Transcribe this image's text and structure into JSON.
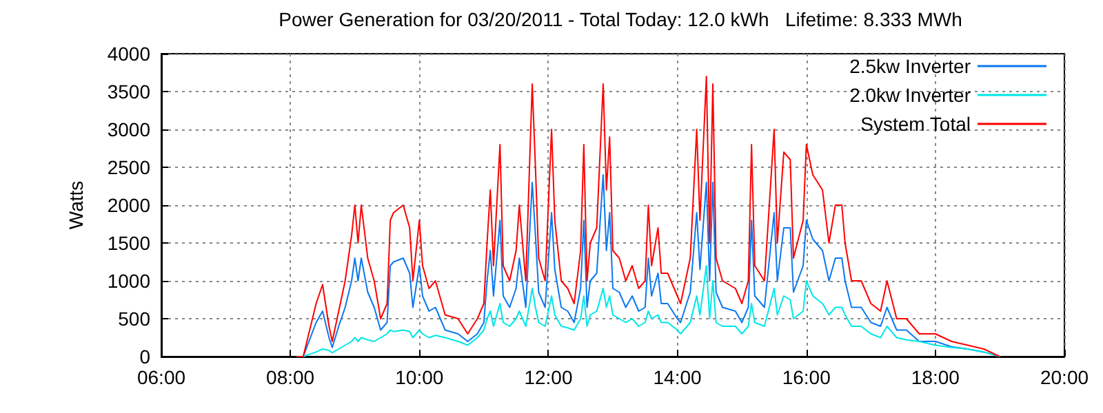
{
  "chart_data": {
    "type": "line",
    "title": "Power Generation for 03/20/2011 - Total Today: 12.0 kWh   Lifetime: 8.333 MWh",
    "ylabel": "Watts",
    "x": [
      8.1,
      8.2,
      8.4,
      8.5,
      8.6,
      8.65,
      8.75,
      8.85,
      8.95,
      9.0,
      9.05,
      9.1,
      9.2,
      9.3,
      9.4,
      9.5,
      9.55,
      9.6,
      9.75,
      9.85,
      9.9,
      10.0,
      10.05,
      10.15,
      10.25,
      10.4,
      10.6,
      10.75,
      10.9,
      11.0,
      11.05,
      11.1,
      11.15,
      11.25,
      11.3,
      11.4,
      11.5,
      11.55,
      11.65,
      11.75,
      11.8,
      11.85,
      11.95,
      12.05,
      12.1,
      12.2,
      12.3,
      12.4,
      12.5,
      12.55,
      12.6,
      12.65,
      12.75,
      12.85,
      12.9,
      12.95,
      13.0,
      13.1,
      13.2,
      13.3,
      13.4,
      13.5,
      13.55,
      13.6,
      13.7,
      13.75,
      13.85,
      14.0,
      14.05,
      14.2,
      14.3,
      14.35,
      14.45,
      14.5,
      14.55,
      14.6,
      14.7,
      14.9,
      15.0,
      15.1,
      15.15,
      15.2,
      15.35,
      15.5,
      15.55,
      15.65,
      15.75,
      15.8,
      15.95,
      16.0,
      16.1,
      16.25,
      16.35,
      16.45,
      16.55,
      16.6,
      16.7,
      16.75,
      16.85,
      17.0,
      17.15,
      17.25,
      17.4,
      17.55,
      17.75,
      18.0,
      18.25,
      18.5,
      18.75,
      19.0
    ],
    "series": [
      {
        "name": "2.5kw Inverter",
        "color": "#0a78f0",
        "values": [
          0,
          0,
          450,
          600,
          250,
          120,
          400,
          650,
          1000,
          1300,
          1000,
          1300,
          850,
          650,
          350,
          450,
          1200,
          1250,
          1300,
          1100,
          650,
          1200,
          800,
          600,
          650,
          350,
          300,
          200,
          300,
          450,
          1000,
          1400,
          800,
          1800,
          800,
          650,
          900,
          1300,
          650,
          2300,
          1600,
          850,
          650,
          1900,
          1150,
          650,
          600,
          450,
          900,
          1800,
          650,
          1000,
          1100,
          2400,
          1400,
          1900,
          900,
          850,
          650,
          800,
          600,
          650,
          1300,
          800,
          1100,
          700,
          700,
          500,
          450,
          850,
          1900,
          1150,
          2300,
          1000,
          2300,
          850,
          650,
          600,
          450,
          650,
          1800,
          800,
          650,
          1900,
          1000,
          1700,
          1700,
          850,
          1200,
          1800,
          1550,
          1400,
          1000,
          1300,
          1300,
          1000,
          650,
          650,
          650,
          450,
          400,
          650,
          350,
          350,
          200,
          200,
          130,
          100,
          60,
          0
        ]
      },
      {
        "name": "2.0kw Inverter",
        "color": "#00e6e6",
        "values": [
          0,
          0,
          60,
          100,
          80,
          50,
          100,
          150,
          200,
          250,
          200,
          250,
          220,
          200,
          250,
          300,
          350,
          330,
          350,
          330,
          250,
          350,
          300,
          250,
          280,
          250,
          200,
          150,
          250,
          350,
          500,
          600,
          400,
          700,
          450,
          400,
          500,
          600,
          400,
          900,
          650,
          450,
          400,
          800,
          550,
          400,
          380,
          350,
          500,
          800,
          400,
          550,
          600,
          900,
          650,
          800,
          550,
          500,
          450,
          500,
          400,
          450,
          600,
          500,
          550,
          450,
          450,
          350,
          300,
          450,
          800,
          550,
          1200,
          500,
          1000,
          450,
          400,
          400,
          300,
          400,
          700,
          450,
          400,
          900,
          550,
          800,
          750,
          500,
          600,
          1000,
          800,
          700,
          550,
          650,
          650,
          550,
          400,
          400,
          400,
          300,
          250,
          400,
          250,
          220,
          200,
          150,
          120,
          100,
          60,
          0
        ]
      },
      {
        "name": "System Total",
        "color": "#ff0000",
        "values": [
          0,
          0,
          700,
          950,
          400,
          200,
          600,
          1000,
          1600,
          2000,
          1500,
          2000,
          1300,
          1000,
          500,
          700,
          1800,
          1900,
          2000,
          1700,
          1000,
          1800,
          1200,
          900,
          1000,
          550,
          500,
          300,
          500,
          700,
          1500,
          2200,
          1200,
          2800,
          1200,
          1000,
          1400,
          2000,
          1000,
          3600,
          2500,
          1300,
          1000,
          3000,
          1800,
          1000,
          900,
          700,
          1400,
          2800,
          1000,
          1500,
          1700,
          3600,
          2200,
          2900,
          1400,
          1300,
          1000,
          1200,
          900,
          1000,
          2000,
          1200,
          1700,
          1100,
          1100,
          800,
          700,
          1300,
          3000,
          1800,
          3700,
          1500,
          3600,
          1300,
          1000,
          900,
          700,
          1000,
          2800,
          1200,
          1000,
          3000,
          1500,
          2700,
          2600,
          1300,
          1800,
          2800,
          2400,
          2200,
          1500,
          2000,
          2000,
          1500,
          1000,
          1000,
          1000,
          700,
          600,
          1000,
          500,
          500,
          300,
          300,
          200,
          150,
          100,
          0
        ]
      }
    ],
    "xlim": [
      6,
      20
    ],
    "xticks": [
      {
        "value": 6,
        "label": "06:00"
      },
      {
        "value": 8,
        "label": "08:00"
      },
      {
        "value": 10,
        "label": "10:00"
      },
      {
        "value": 12,
        "label": "12:00"
      },
      {
        "value": 14,
        "label": "14:00"
      },
      {
        "value": 16,
        "label": "16:00"
      },
      {
        "value": 18,
        "label": "18:00"
      },
      {
        "value": 20,
        "label": "20:00"
      }
    ],
    "ylim": [
      0,
      4000
    ],
    "yticks": [
      0,
      500,
      1000,
      1500,
      2000,
      2500,
      3000,
      3500,
      4000
    ],
    "grid": true,
    "legend": "top right",
    "marker": "none",
    "line_style": "solid"
  }
}
